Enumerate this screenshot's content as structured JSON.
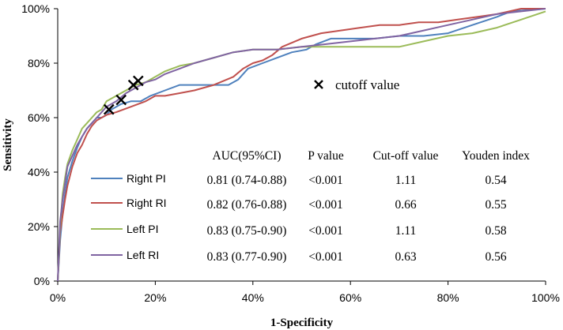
{
  "chart_data": {
    "type": "line",
    "xlabel": "1-Specificity",
    "ylabel": "Sensitivity",
    "xlim": [
      0,
      1
    ],
    "ylim": [
      0,
      1
    ],
    "x_ticks": [
      "0%",
      "20%",
      "40%",
      "60%",
      "80%",
      "100%"
    ],
    "y_ticks": [
      "0%",
      "20%",
      "40%",
      "60%",
      "80%",
      "100%"
    ],
    "grid": false,
    "table_headers": [
      "AUC(95%CI)",
      "P value",
      "Cut-off value",
      "Youden index"
    ],
    "cutoff_label": "cutoff  value",
    "cutoff_points": [
      {
        "x": 0.105,
        "y": 0.63
      },
      {
        "x": 0.13,
        "y": 0.665
      },
      {
        "x": 0.155,
        "y": 0.72
      },
      {
        "x": 0.165,
        "y": 0.735
      }
    ],
    "series": [
      {
        "name": "Right PI",
        "color": "#4f81bd",
        "auc": "0.81 (0.74-0.88)",
        "p_value": "<0.001",
        "cutoff": "1.11",
        "youden": "0.54",
        "x": [
          0,
          0.005,
          0.01,
          0.015,
          0.02,
          0.03,
          0.04,
          0.05,
          0.06,
          0.07,
          0.08,
          0.09,
          0.1,
          0.11,
          0.13,
          0.15,
          0.17,
          0.19,
          0.22,
          0.25,
          0.3,
          0.35,
          0.37,
          0.39,
          0.42,
          0.45,
          0.48,
          0.51,
          0.53,
          0.56,
          0.6,
          0.65,
          0.7,
          0.75,
          0.8,
          0.85,
          0.9,
          0.93,
          1.0
        ],
        "y": [
          0,
          0.15,
          0.25,
          0.32,
          0.38,
          0.44,
          0.49,
          0.53,
          0.56,
          0.58,
          0.6,
          0.6,
          0.61,
          0.63,
          0.65,
          0.66,
          0.66,
          0.68,
          0.7,
          0.72,
          0.72,
          0.72,
          0.74,
          0.78,
          0.8,
          0.82,
          0.84,
          0.85,
          0.87,
          0.89,
          0.89,
          0.89,
          0.9,
          0.9,
          0.91,
          0.94,
          0.97,
          0.99,
          1.0
        ]
      },
      {
        "name": "Right RI",
        "color": "#c0504d",
        "auc": "0.82 (0.76-0.88)",
        "p_value": "<0.001",
        "cutoff": "0.66",
        "youden": "0.55",
        "x": [
          0,
          0.005,
          0.01,
          0.015,
          0.02,
          0.03,
          0.04,
          0.05,
          0.06,
          0.07,
          0.08,
          0.09,
          0.1,
          0.12,
          0.15,
          0.18,
          0.2,
          0.22,
          0.25,
          0.28,
          0.32,
          0.36,
          0.38,
          0.4,
          0.42,
          0.44,
          0.46,
          0.5,
          0.54,
          0.58,
          0.62,
          0.66,
          0.7,
          0.74,
          0.78,
          0.82,
          0.86,
          0.9,
          0.95,
          1.0
        ],
        "y": [
          0,
          0.18,
          0.24,
          0.3,
          0.35,
          0.42,
          0.47,
          0.5,
          0.54,
          0.57,
          0.59,
          0.6,
          0.61,
          0.62,
          0.64,
          0.66,
          0.68,
          0.68,
          0.69,
          0.7,
          0.72,
          0.75,
          0.78,
          0.8,
          0.81,
          0.83,
          0.86,
          0.89,
          0.91,
          0.92,
          0.93,
          0.94,
          0.94,
          0.95,
          0.95,
          0.96,
          0.97,
          0.98,
          1.0,
          1.0
        ]
      },
      {
        "name": "Left PI",
        "color": "#9bbb59",
        "auc": "0.83 (0.75-0.90)",
        "p_value": "<0.001",
        "cutoff": "1.11",
        "youden": "0.58",
        "x": [
          0,
          0.005,
          0.01,
          0.015,
          0.02,
          0.03,
          0.04,
          0.05,
          0.06,
          0.07,
          0.08,
          0.09,
          0.1,
          0.12,
          0.14,
          0.16,
          0.18,
          0.2,
          0.22,
          0.25,
          0.28,
          0.32,
          0.36,
          0.4,
          0.45,
          0.5,
          0.55,
          0.6,
          0.65,
          0.7,
          0.75,
          0.8,
          0.85,
          0.9,
          0.95,
          1.0
        ],
        "y": [
          0,
          0.2,
          0.32,
          0.38,
          0.43,
          0.48,
          0.52,
          0.56,
          0.58,
          0.6,
          0.62,
          0.63,
          0.66,
          0.68,
          0.7,
          0.72,
          0.73,
          0.75,
          0.77,
          0.79,
          0.8,
          0.82,
          0.84,
          0.85,
          0.85,
          0.86,
          0.86,
          0.86,
          0.86,
          0.86,
          0.88,
          0.9,
          0.91,
          0.93,
          0.96,
          0.99
        ]
      },
      {
        "name": "Left RI",
        "color": "#8064a2",
        "auc": "0.83 (0.77-0.90)",
        "p_value": "<0.001",
        "cutoff": "0.63",
        "youden": "0.56",
        "x": [
          0,
          0.005,
          0.01,
          0.015,
          0.02,
          0.03,
          0.04,
          0.05,
          0.06,
          0.07,
          0.08,
          0.09,
          0.1,
          0.12,
          0.14,
          0.16,
          0.18,
          0.2,
          0.22,
          0.25,
          0.28,
          0.32,
          0.36,
          0.4,
          0.45,
          0.5,
          0.55,
          0.6,
          0.65,
          0.7,
          0.75,
          0.8,
          0.85,
          0.9,
          0.95,
          1.0
        ],
        "y": [
          0,
          0.22,
          0.3,
          0.36,
          0.42,
          0.46,
          0.5,
          0.53,
          0.56,
          0.58,
          0.6,
          0.62,
          0.64,
          0.66,
          0.69,
          0.71,
          0.73,
          0.74,
          0.76,
          0.78,
          0.8,
          0.82,
          0.84,
          0.85,
          0.85,
          0.86,
          0.87,
          0.88,
          0.89,
          0.9,
          0.92,
          0.94,
          0.96,
          0.98,
          0.99,
          1.0
        ]
      }
    ]
  }
}
